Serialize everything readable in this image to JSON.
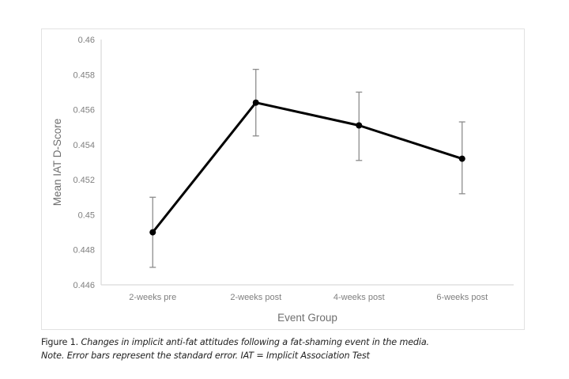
{
  "chart_data": {
    "type": "line",
    "title": "",
    "xlabel": "Event Group",
    "ylabel": "Mean IAT D-Score",
    "categories": [
      "2-weeks pre",
      "2-weeks post",
      "4-weeks post",
      "6-weeks post"
    ],
    "series": [
      {
        "name": "Mean IAT D-Score",
        "values": [
          0.449,
          0.4564,
          0.4551,
          0.4532
        ],
        "error_upper": [
          0.451,
          0.4583,
          0.457,
          0.4553
        ],
        "error_lower": [
          0.447,
          0.4545,
          0.4531,
          0.4512
        ],
        "color": "#000000"
      }
    ],
    "ylim": [
      0.446,
      0.46
    ],
    "yticks": [
      0.446,
      0.448,
      0.45,
      0.452,
      0.454,
      0.456,
      0.458,
      0.46
    ],
    "ytick_labels": [
      "0.446",
      "0.448",
      "0.45",
      "0.452",
      "0.454",
      "0.456",
      "0.458",
      "0.46"
    ],
    "grid": false,
    "legend": "none",
    "error_bars": "standard error"
  },
  "caption": {
    "figure_label": "Figure 1.",
    "figure_text": "Changes in implicit anti-fat attitudes following a fat-shaming event in the media.",
    "note_text": "Note. Error bars represent the standard error. IAT = Implicit Association Test"
  }
}
